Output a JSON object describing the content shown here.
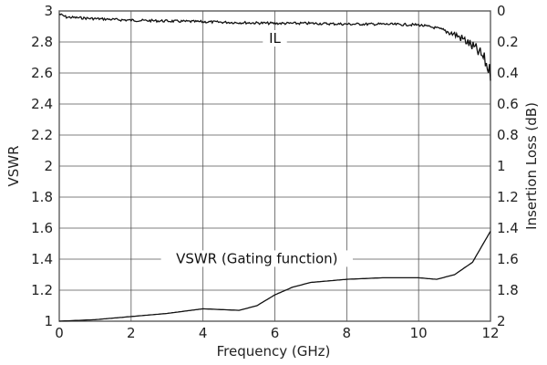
{
  "chart_data": {
    "type": "line",
    "xlabel": "Frequency (GHz)",
    "ylabel_left": "VSWR",
    "ylabel_right": "Insertion Loss (dB)",
    "xlim": [
      0,
      12
    ],
    "ylim_left": [
      1,
      3
    ],
    "ylim_right": [
      0,
      2
    ],
    "right_axis_inverted": true,
    "grid": true,
    "x_ticks": [
      "0",
      "2",
      "4",
      "6",
      "8",
      "10",
      "12"
    ],
    "y_left_ticks": [
      "1",
      "1.2",
      "1.4",
      "1.6",
      "1.8",
      "2",
      "2.2",
      "2.4",
      "2.6",
      "2.8",
      "3"
    ],
    "y_right_ticks": [
      "2",
      "1.8",
      "1.6",
      "1.4",
      "1.2",
      "1",
      "0.8",
      "0.6",
      "0.4",
      "0.2",
      "0"
    ],
    "series": [
      {
        "name": "IL",
        "axis": "right",
        "color": "#111111",
        "noisy": true,
        "x": [
          0,
          0.2,
          1,
          2,
          3,
          4,
          5,
          6,
          7,
          8,
          9,
          10,
          10.5,
          11,
          11.3,
          11.6,
          11.8,
          12
        ],
        "values": [
          0.02,
          0.04,
          0.05,
          0.06,
          0.065,
          0.07,
          0.075,
          0.08,
          0.08,
          0.085,
          0.085,
          0.09,
          0.11,
          0.15,
          0.19,
          0.25,
          0.3,
          0.4
        ]
      },
      {
        "name": "VSWR (Gating function)",
        "axis": "left",
        "color": "#111111",
        "noisy": false,
        "x": [
          0,
          0.5,
          1,
          2,
          3,
          4,
          4.5,
          5,
          5.5,
          6,
          6.5,
          7,
          8,
          9,
          10,
          10.5,
          11,
          11.5,
          12
        ],
        "values": [
          1.0,
          1.005,
          1.01,
          1.03,
          1.05,
          1.08,
          1.075,
          1.07,
          1.1,
          1.17,
          1.22,
          1.25,
          1.27,
          1.28,
          1.28,
          1.27,
          1.3,
          1.38,
          1.58
        ]
      }
    ],
    "annotations": [
      {
        "text": "IL",
        "x": 6,
        "y_right": 0.2
      },
      {
        "text": "VSWR (Gating function)",
        "x": 5.5,
        "y_left": 1.38
      }
    ]
  }
}
